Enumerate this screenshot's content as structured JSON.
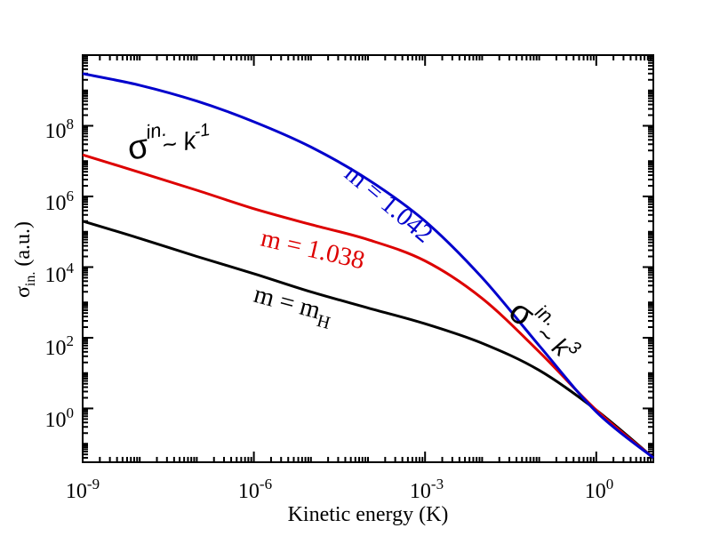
{
  "chart_data": {
    "type": "line",
    "xlabel": "Kinetic energy (K)",
    "ylabel": {
      "base": "σ",
      "sub": "in.",
      "unit": "(a.u.)"
    },
    "xscale": "log",
    "yscale": "log",
    "xlim": [
      1e-09,
      10
    ],
    "ylim": [
      0.03,
      10000000000.0
    ],
    "grid": false,
    "x_ticks": [
      {
        "value": 1e-09,
        "base": "10",
        "exp": "-9"
      },
      {
        "value": 1e-06,
        "base": "10",
        "exp": "-6"
      },
      {
        "value": 0.001,
        "base": "10",
        "exp": "-3"
      },
      {
        "value": 1,
        "base": "10",
        "exp": "0"
      }
    ],
    "y_ticks": [
      {
        "value": 1,
        "base": "10",
        "exp": "0"
      },
      {
        "value": 100,
        "base": "10",
        "exp": "2"
      },
      {
        "value": 10000,
        "base": "10",
        "exp": "4"
      },
      {
        "value": 1000000,
        "base": "10",
        "exp": "6"
      },
      {
        "value": 100000000,
        "base": "10",
        "exp": "8"
      }
    ],
    "series": [
      {
        "name": "m = 1.042",
        "color": "#0000cc",
        "x": [
          1e-09,
          1e-08,
          1e-07,
          1e-06,
          1e-05,
          0.0001,
          0.001,
          0.01,
          0.1,
          1,
          10
        ],
        "y": [
          3000000000.0,
          1400000000.0,
          500000000.0,
          130000000.0,
          25000000.0,
          3000000.0,
          200000.0,
          5000.0,
          60,
          0.8,
          0.04
        ]
      },
      {
        "name": "m = 1.038",
        "color": "#dd0000",
        "x": [
          1e-09,
          1e-08,
          1e-07,
          1e-06,
          1e-05,
          0.0001,
          0.001,
          0.01,
          0.1,
          1,
          10
        ],
        "y": [
          15000000.0,
          4800000.0,
          1500000.0,
          450000.0,
          160000.0,
          60000.0,
          15000.0,
          1300.0,
          40,
          0.9,
          0.04
        ]
      },
      {
        "name": "m = m_H",
        "color": "#000000",
        "x": [
          1e-09,
          1e-08,
          1e-07,
          1e-06,
          1e-05,
          0.0001,
          0.001,
          0.01,
          0.1,
          1,
          10
        ],
        "y": [
          200000.0,
          65000.0,
          20000.0,
          6500.0,
          2000.0,
          700,
          250,
          70,
          12,
          0.9,
          0.04
        ]
      }
    ],
    "annotations": [
      {
        "text": "m = 1.042",
        "color": "#0000cc"
      },
      {
        "text": "m = 1.038",
        "color": "#dd0000"
      },
      {
        "text": "m = m",
        "sub": "H",
        "color": "#000000"
      },
      {
        "base": "σ",
        "sup": "in.",
        "rest": "~ k",
        "exp": "-1"
      },
      {
        "base": "σ",
        "sup": "in.",
        "rest": "~ k",
        "exp": "3"
      }
    ]
  }
}
